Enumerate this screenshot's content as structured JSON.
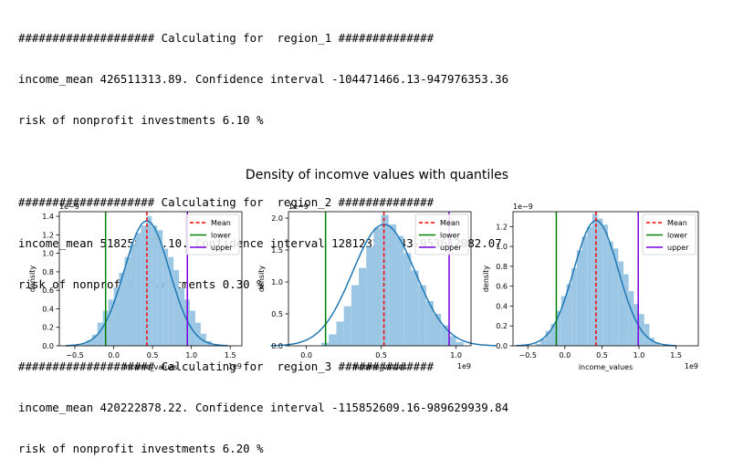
{
  "output": {
    "blocks": [
      {
        "header": "#################### Calculating for  region_1 ##############",
        "income_line": "income_mean 426511313.89. Confidence interval -104471466.13-947976353.36",
        "risk_line": "risk of nonprofit investments 6.10 %"
      },
      {
        "header": "#################### Calculating for  region_2 ##############",
        "income_line": "income_mean 518258063.10. Confidence interval 128123231.43-953612982.07",
        "risk_line": "risk of nonprofit investments 0.30 %"
      },
      {
        "header": "#################### Calculating for  region_3 ##############",
        "income_line": "income_mean 420222878.22. Confidence interval -115852609.16-989629939.84",
        "risk_line": "risk of nonprofit investments 6.20 %"
      }
    ]
  },
  "figure_title": "Density of incomve values with quantiles",
  "colors": {
    "hist": "#9cc7e4",
    "kde": "#1f77b4",
    "mean": "#ff0000",
    "lower": "#008000",
    "upper": "#7a00e0"
  },
  "chart_data": [
    {
      "type": "histogram",
      "xlabel": "income_values",
      "ylabel": "density",
      "x_multiplier": "1e9",
      "y_multiplier": "1e−9",
      "xlim": [
        -0.7,
        1.65
      ],
      "ylim": [
        0,
        1.45
      ],
      "xticks": [
        -0.5,
        0.0,
        0.5,
        1.0,
        1.5
      ],
      "xtick_labels": [
        "−0.5",
        "0.0",
        "0.5",
        "1.0",
        "1.5"
      ],
      "yticks": [
        0.0,
        0.2,
        0.4,
        0.6,
        0.8,
        1.0,
        1.2,
        1.4
      ],
      "ytick_labels": [
        "0.0",
        "0.2",
        "0.4",
        "0.6",
        "0.8",
        "1.0",
        "1.2",
        "1.4"
      ],
      "mean": 0.4265,
      "lower": -0.1045,
      "upper": 0.948,
      "kde_sd": 0.29,
      "kde_peak": 1.35,
      "bins": [
        [
          -0.42,
          0.02
        ],
        [
          -0.35,
          0.06
        ],
        [
          -0.28,
          0.12
        ],
        [
          -0.21,
          0.25
        ],
        [
          -0.14,
          0.38
        ],
        [
          -0.07,
          0.5
        ],
        [
          0.0,
          0.63
        ],
        [
          0.07,
          0.79
        ],
        [
          0.14,
          0.96
        ],
        [
          0.21,
          1.1
        ],
        [
          0.28,
          1.22
        ],
        [
          0.35,
          1.3
        ],
        [
          0.42,
          1.4
        ],
        [
          0.49,
          1.3
        ],
        [
          0.56,
          1.25
        ],
        [
          0.63,
          1.05
        ],
        [
          0.7,
          0.96
        ],
        [
          0.77,
          0.82
        ],
        [
          0.84,
          0.62
        ],
        [
          0.91,
          0.5
        ],
        [
          0.98,
          0.38
        ],
        [
          1.05,
          0.25
        ],
        [
          1.12,
          0.13
        ],
        [
          1.19,
          0.05
        ],
        [
          1.26,
          0.02
        ]
      ],
      "legend": [
        "Mean",
        "lower",
        "upper"
      ],
      "legend_position": "upper right"
    },
    {
      "type": "histogram",
      "xlabel": "income_values",
      "ylabel": "density",
      "x_multiplier": "1e9",
      "y_multiplier": "1e−9",
      "xlim": [
        -0.12,
        1.1
      ],
      "ylim": [
        0,
        2.1
      ],
      "xticks": [
        0.0,
        0.5,
        1.0
      ],
      "xtick_labels": [
        "0.0",
        "0.5",
        "1.0"
      ],
      "yticks": [
        0.0,
        0.5,
        1.0,
        1.5,
        2.0
      ],
      "ytick_labels": [
        "0.0",
        "0.5",
        "1.0",
        "1.5",
        "2.0"
      ],
      "mean": 0.518,
      "lower": 0.128,
      "upper": 0.9536,
      "kde_sd": 0.21,
      "kde_peak": 1.9,
      "bins": [
        [
          0.1,
          0.05
        ],
        [
          0.15,
          0.18
        ],
        [
          0.2,
          0.38
        ],
        [
          0.25,
          0.62
        ],
        [
          0.3,
          0.95
        ],
        [
          0.35,
          1.22
        ],
        [
          0.4,
          1.55
        ],
        [
          0.45,
          1.85
        ],
        [
          0.5,
          2.05
        ],
        [
          0.55,
          1.9
        ],
        [
          0.6,
          1.72
        ],
        [
          0.65,
          1.45
        ],
        [
          0.7,
          1.18
        ],
        [
          0.75,
          0.95
        ],
        [
          0.8,
          0.7
        ],
        [
          0.85,
          0.5
        ],
        [
          0.9,
          0.32
        ],
        [
          0.95,
          0.15
        ],
        [
          1.0,
          0.06
        ]
      ],
      "legend": [
        "Mean",
        "lower",
        "upper"
      ],
      "legend_position": "upper right"
    },
    {
      "type": "histogram",
      "xlabel": "income_values",
      "ylabel": "density",
      "x_multiplier": "1e9",
      "y_multiplier": "1e−9",
      "xlim": [
        -0.7,
        1.8
      ],
      "ylim": [
        0,
        1.35
      ],
      "xticks": [
        -0.5,
        0.0,
        0.5,
        1.0,
        1.5
      ],
      "xtick_labels": [
        "−0.5",
        "0.0",
        "0.5",
        "1.0",
        "1.5"
      ],
      "yticks": [
        0.0,
        0.2,
        0.4,
        0.6,
        0.8,
        1.0,
        1.2
      ],
      "ytick_labels": [
        "0.0",
        "0.2",
        "0.4",
        "0.6",
        "0.8",
        "1.0",
        "1.2"
      ],
      "mean": 0.4202,
      "lower": -0.1159,
      "upper": 0.9896,
      "kde_sd": 0.3,
      "kde_peak": 1.26,
      "bins": [
        [
          -0.4,
          0.02
        ],
        [
          -0.33,
          0.07
        ],
        [
          -0.26,
          0.15
        ],
        [
          -0.19,
          0.22
        ],
        [
          -0.12,
          0.35
        ],
        [
          -0.05,
          0.5
        ],
        [
          0.02,
          0.62
        ],
        [
          0.09,
          0.78
        ],
        [
          0.16,
          0.96
        ],
        [
          0.23,
          1.1
        ],
        [
          0.3,
          1.2
        ],
        [
          0.37,
          1.33
        ],
        [
          0.44,
          1.28
        ],
        [
          0.51,
          1.22
        ],
        [
          0.58,
          1.05
        ],
        [
          0.65,
          0.98
        ],
        [
          0.72,
          0.85
        ],
        [
          0.79,
          0.72
        ],
        [
          0.86,
          0.55
        ],
        [
          0.93,
          0.42
        ],
        [
          1.0,
          0.32
        ],
        [
          1.07,
          0.22
        ],
        [
          1.14,
          0.08
        ],
        [
          1.21,
          0.03
        ]
      ],
      "legend": [
        "Mean",
        "lower",
        "upper"
      ],
      "legend_position": "upper right"
    }
  ]
}
